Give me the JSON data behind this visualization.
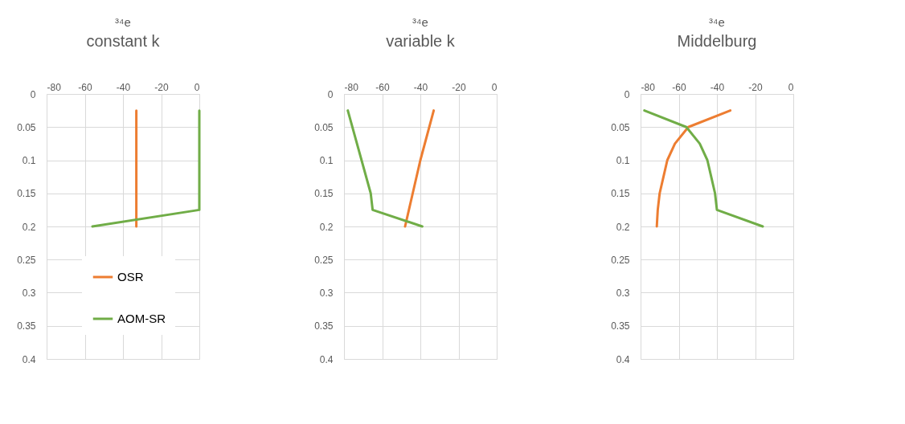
{
  "chart_data": [
    {
      "type": "line",
      "title": "³⁴e",
      "subtitle": "constant k",
      "xlim": [
        -80,
        0
      ],
      "xticks": [
        -80,
        -60,
        -40,
        -20,
        0
      ],
      "ylim": [
        0.4,
        0
      ],
      "yticks": [
        0,
        0.05,
        0.1,
        0.15,
        0.2,
        0.25,
        0.3,
        0.35,
        0.4
      ],
      "grid": true,
      "legend": "bottom",
      "series": [
        {
          "name": "OSR",
          "color": "#ed7d31",
          "x": [
            -33,
            -33
          ],
          "values": [
            0.025,
            0.2
          ]
        },
        {
          "name": "AOM-SR",
          "color": "#70ad47",
          "x": [
            0,
            0,
            -56
          ],
          "values": [
            0.025,
            0.175,
            0.2
          ]
        }
      ]
    },
    {
      "type": "line",
      "title": "³⁴e",
      "subtitle": "variable k",
      "xlim": [
        -80,
        0
      ],
      "xticks": [
        -80,
        -60,
        -40,
        -20,
        0
      ],
      "ylim": [
        0.4,
        0
      ],
      "yticks": [
        0,
        0.05,
        0.1,
        0.15,
        0.2,
        0.25,
        0.3,
        0.35,
        0.4
      ],
      "grid": true,
      "series": [
        {
          "color": "#ed7d31",
          "x": [
            -33,
            -40,
            -44,
            -46,
            -48
          ],
          "values": [
            0.025,
            0.1,
            0.15,
            0.175,
            0.2
          ]
        },
        {
          "color": "#70ad47",
          "x": [
            -78,
            -66,
            -65,
            -39
          ],
          "values": [
            0.025,
            0.15,
            0.175,
            0.2
          ]
        }
      ]
    },
    {
      "type": "line",
      "title": "³⁴e",
      "subtitle": "Middelburg",
      "xlim": [
        -80,
        0
      ],
      "xticks": [
        -80,
        -60,
        -40,
        -20,
        0
      ],
      "ylim": [
        0.4,
        0
      ],
      "yticks": [
        0,
        0.05,
        0.1,
        0.15,
        0.2,
        0.25,
        0.3,
        0.35,
        0.4
      ],
      "grid": true,
      "series": [
        {
          "color": "#ed7d31",
          "x": [
            -33,
            -55,
            -62,
            -66,
            -68,
            -70,
            -71,
            -71.5
          ],
          "values": [
            0.025,
            0.05,
            0.075,
            0.1,
            0.125,
            0.15,
            0.175,
            0.2
          ]
        },
        {
          "color": "#70ad47",
          "x": [
            -78,
            -56,
            -49,
            -45,
            -43,
            -41,
            -40,
            -16
          ],
          "values": [
            0.025,
            0.05,
            0.075,
            0.1,
            0.125,
            0.15,
            0.175,
            0.2
          ]
        }
      ]
    }
  ]
}
